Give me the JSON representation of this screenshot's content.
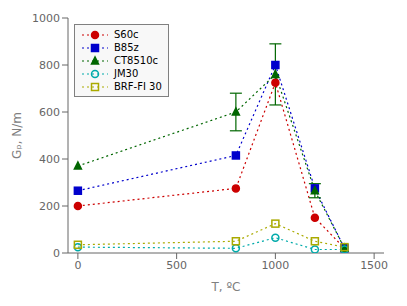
{
  "chart_data": {
    "type": "line",
    "xlabel": "T, ºC",
    "ylabel": "Gₚ, N/m",
    "x": [
      0,
      800,
      1000,
      1200,
      1350
    ],
    "series": [
      {
        "name": "S60c",
        "color": "#cc0000",
        "marker": "circle",
        "line_style": "dotted",
        "values": [
          200,
          275,
          725,
          150,
          20
        ]
      },
      {
        "name": "B85z",
        "color": "#0000cc",
        "marker": "square",
        "line_style": "dotted",
        "values": [
          265,
          415,
          800,
          275,
          20
        ]
      },
      {
        "name": "CT8510c",
        "color": "#006600",
        "marker": "triangle",
        "line_style": "dotted",
        "values": [
          370,
          600,
          760,
          265,
          20
        ],
        "yerr": [
          null,
          80,
          130,
          30,
          null
        ]
      },
      {
        "name": "JM30",
        "color": "#00aaaa",
        "marker": "circle_open",
        "line_style": "dotted",
        "values": [
          25,
          20,
          65,
          15,
          15
        ]
      },
      {
        "name": "BRF-FI 30",
        "color": "#aaaa00",
        "marker": "square_open",
        "line_style": "dotted",
        "values": [
          35,
          50,
          125,
          50,
          25
        ]
      }
    ],
    "xlim": [
      -50,
      1550
    ],
    "ylim": [
      0,
      1000
    ],
    "xticks": [
      0,
      500,
      1000,
      1500
    ],
    "yticks": [
      0,
      200,
      400,
      600,
      800,
      1000
    ],
    "legend": "upper left",
    "grid": false
  }
}
